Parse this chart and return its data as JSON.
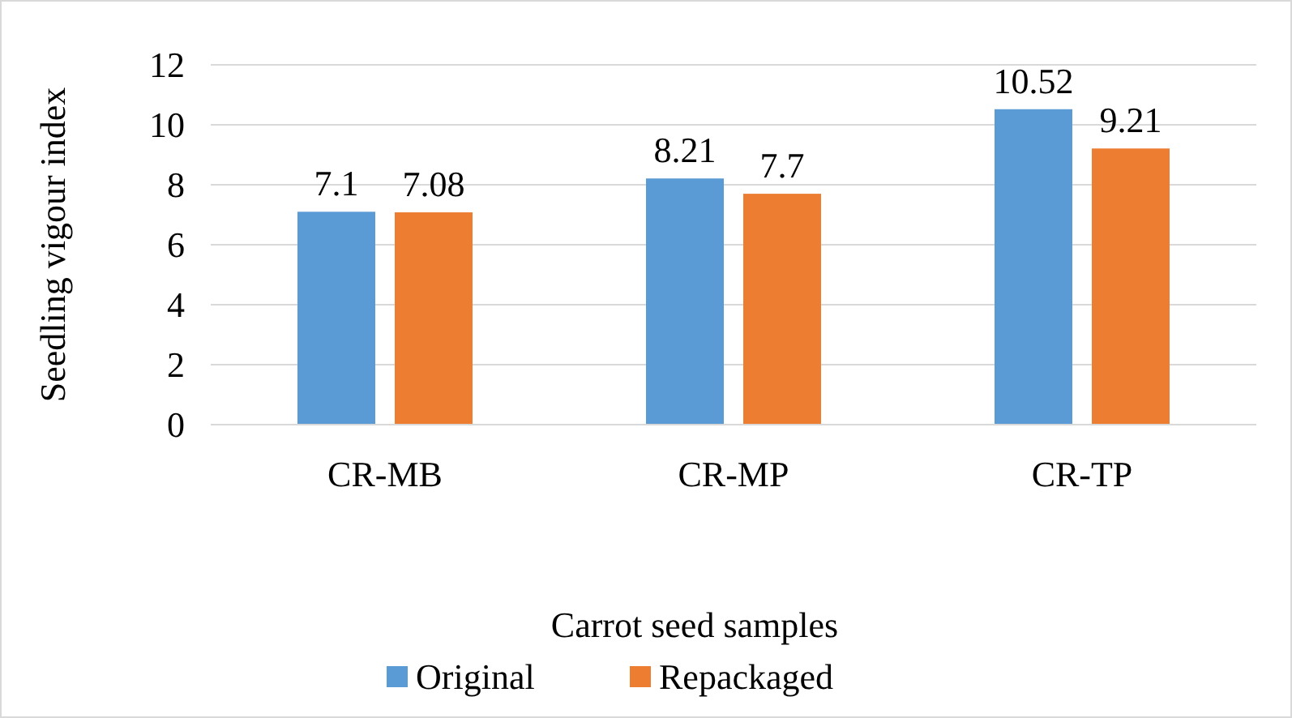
{
  "chart_data": {
    "type": "bar",
    "ylabel": "Seedling vigour index",
    "xlabel": "Carrot seed samples",
    "categories": [
      "CR-MB",
      "CR-MP",
      "CR-TP"
    ],
    "series": [
      {
        "name": "Original",
        "color": "#5b9bd5",
        "values": [
          7.1,
          8.21,
          10.52
        ]
      },
      {
        "name": "Repackaged",
        "color": "#ed7d31",
        "values": [
          7.08,
          7.7,
          9.21
        ]
      }
    ],
    "ylim": [
      0,
      12
    ],
    "yticks": [
      0,
      2,
      4,
      6,
      8,
      10,
      12
    ],
    "grid": "y",
    "legend": "bottom",
    "data_labels": true
  }
}
